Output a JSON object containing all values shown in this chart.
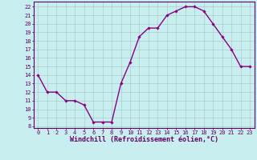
{
  "x": [
    0,
    1,
    2,
    3,
    4,
    5,
    6,
    7,
    8,
    9,
    10,
    11,
    12,
    13,
    14,
    15,
    16,
    17,
    18,
    19,
    20,
    21,
    22,
    23
  ],
  "y": [
    14,
    12,
    12,
    11,
    11,
    10.5,
    8.5,
    8.5,
    8.5,
    13,
    15.5,
    18.5,
    19.5,
    19.5,
    21,
    21.5,
    22,
    22,
    21.5,
    20,
    18.5,
    17,
    15,
    15
  ],
  "line_color": "#880088",
  "marker": "D",
  "marker_size": 1.8,
  "linewidth": 1.0,
  "background_color": "#c8eef0",
  "grid_color": "#aacccc",
  "xlabel": "Windchill (Refroidissement éolien,°C)",
  "ylabel_ticks": [
    8,
    9,
    10,
    11,
    12,
    13,
    14,
    15,
    16,
    17,
    18,
    19,
    20,
    21,
    22
  ],
  "ylim": [
    7.8,
    22.6
  ],
  "xlim": [
    -0.5,
    23.5
  ],
  "xticks": [
    0,
    1,
    2,
    3,
    4,
    5,
    6,
    7,
    8,
    9,
    10,
    11,
    12,
    13,
    14,
    15,
    16,
    17,
    18,
    19,
    20,
    21,
    22,
    23
  ],
  "tick_fontsize": 5.0,
  "xlabel_fontsize": 6.0,
  "tick_color": "#660066"
}
